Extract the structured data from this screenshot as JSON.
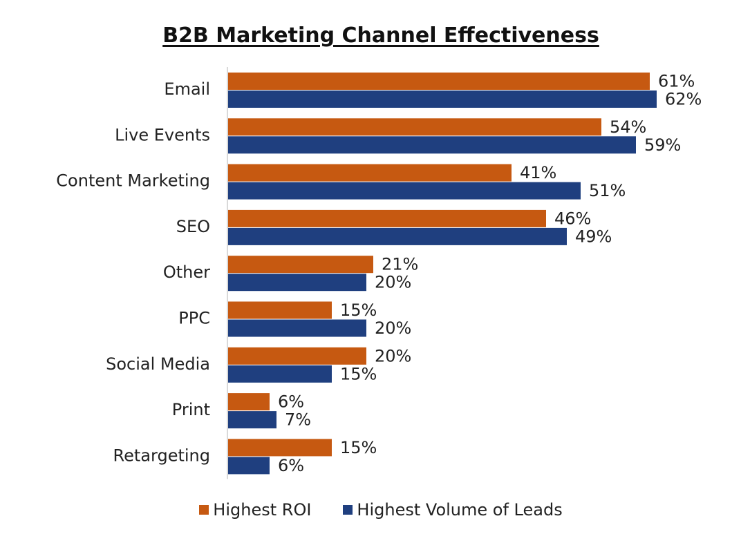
{
  "chart_data": {
    "type": "bar",
    "orientation": "horizontal",
    "title": "B2B Marketing Channel Effectiveness",
    "categories": [
      "Email",
      "Live Events",
      "Content Marketing",
      "SEO",
      "Other",
      "PPC",
      "Social Media",
      "Print",
      "Retargeting"
    ],
    "series": [
      {
        "name": "Highest ROI",
        "color": "#C65911",
        "values": [
          61,
          54,
          41,
          46,
          21,
          15,
          20,
          6,
          15
        ],
        "labels": [
          "61%",
          "54%",
          "41%",
          "46%",
          "21%",
          "15%",
          "20%",
          "6%",
          "15%"
        ]
      },
      {
        "name": "Highest Volume of Leads",
        "color": "#1F3F7F",
        "values": [
          62,
          59,
          51,
          49,
          20,
          20,
          15,
          7,
          6
        ],
        "labels": [
          "62%",
          "59%",
          "51%",
          "49%",
          "20%",
          "20%",
          "15%",
          "7%",
          "6%"
        ]
      }
    ],
    "xlim": [
      0,
      62
    ],
    "grid": false,
    "legend_position": "bottom"
  }
}
